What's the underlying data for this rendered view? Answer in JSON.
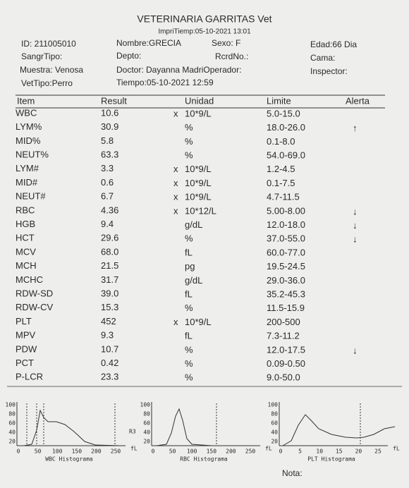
{
  "header": {
    "title": "VETERINARIA GARRITAS  Vet",
    "print_time": "ImpriTiemp:05-10-2021 13:01",
    "id": "ID: 211005010",
    "name": "Nombre:GRECIA",
    "sex": "Sexo: F",
    "age": "Edad:66 Dia",
    "blood_type": "SangrTipo:",
    "dept": "Depto:",
    "record": "RcrdNo.:",
    "bed": "Cama:",
    "sample": "Muestra: Venosa",
    "doctor": "Doctor: Dayanna MadriOperador:",
    "inspector": "Inspector:",
    "vet_type": "VetTipo:Perro",
    "time": "Tiempo:05-10-2021 12:59"
  },
  "table": {
    "columns": [
      "Item",
      "Result",
      "Unidad",
      "Limite",
      "Alerta"
    ],
    "rows": [
      {
        "item": "WBC",
        "result": "10.6",
        "flag": "x",
        "unit": "10*9/L",
        "limit": "5.0-15.0"
      },
      {
        "item": "LYM%",
        "result": "30.9",
        "unit": "%",
        "limit": "18.0-26.0",
        "alert": "↑"
      },
      {
        "item": "MID%",
        "result": "5.8",
        "unit": "%",
        "limit": "0.1-8.0"
      },
      {
        "item": "NEUT%",
        "result": "63.3",
        "unit": "%",
        "limit": "54.0-69.0"
      },
      {
        "item": "LYM#",
        "result": "3.3",
        "flag": "x",
        "unit": "10*9/L",
        "limit": "1.2-4.5"
      },
      {
        "item": "MID#",
        "result": "0.6",
        "flag": "x",
        "unit": "10*9/L",
        "limit": "0.1-7.5"
      },
      {
        "item": "NEUT#",
        "result": "6.7",
        "flag": "x",
        "unit": "10*9/L",
        "limit": "4.7-11.5"
      },
      {
        "item": "RBC",
        "result": "4.36",
        "flag": "x",
        "unit": "10*12/L",
        "limit": "5.00-8.00",
        "alert": "↓"
      },
      {
        "item": "HGB",
        "result": "9.4",
        "unit": "g/dL",
        "limit": "12.0-18.0",
        "alert": "↓"
      },
      {
        "item": "HCT",
        "result": "29.6",
        "unit": "%",
        "limit": "37.0-55.0",
        "alert": "↓"
      },
      {
        "item": "MCV",
        "result": "68.0",
        "unit": "fL",
        "limit": "60.0-77.0"
      },
      {
        "item": "MCH",
        "result": "21.5",
        "unit": "pg",
        "limit": "19.5-24.5"
      },
      {
        "item": "MCHC",
        "result": "31.7",
        "unit": "g/dL",
        "limit": "29.0-36.0"
      },
      {
        "item": "RDW-SD",
        "result": "39.0",
        "unit": "fL",
        "limit": "35.2-45.3"
      },
      {
        "item": "RDW-CV",
        "result": "15.3",
        "unit": "%",
        "limit": "11.5-15.9"
      },
      {
        "item": "PLT",
        "result": "452",
        "flag": "x",
        "unit": "10*9/L",
        "limit": "200-500"
      },
      {
        "item": "MPV",
        "result": "9.3",
        "unit": "fL",
        "limit": "7.3-11.2"
      },
      {
        "item": "PDW",
        "result": "10.7",
        "unit": "%",
        "limit": "12.0-17.5",
        "alert": "↓"
      },
      {
        "item": "PCT",
        "result": "0.42",
        "unit": "%",
        "limit": "0.09-0.50"
      },
      {
        "item": "P-LCR",
        "result": "23.3",
        "unit": "%",
        "limit": "9.0-50.0"
      }
    ]
  },
  "histograms": [
    {
      "yticks": [
        "100",
        "80",
        "60",
        "40",
        "20"
      ],
      "xticks": [
        "0",
        "50",
        "100",
        "150",
        "200",
        "250"
      ],
      "unit": "fL",
      "label": "WBC Histograma",
      "marker": "R3"
    },
    {
      "yticks": [
        "100",
        "80",
        "60",
        "40",
        "20"
      ],
      "xticks": [
        "0",
        "50",
        "100",
        "150",
        "200",
        "250"
      ],
      "unit": "fL",
      "label": "RBC Histograma"
    },
    {
      "yticks": [
        "100",
        "80",
        "60",
        "40",
        "20"
      ],
      "xticks": [
        "0",
        "5",
        "10",
        "15",
        "20",
        "25"
      ],
      "unit": "fL",
      "label": "PLT Histograma"
    }
  ],
  "note": "Nota:"
}
